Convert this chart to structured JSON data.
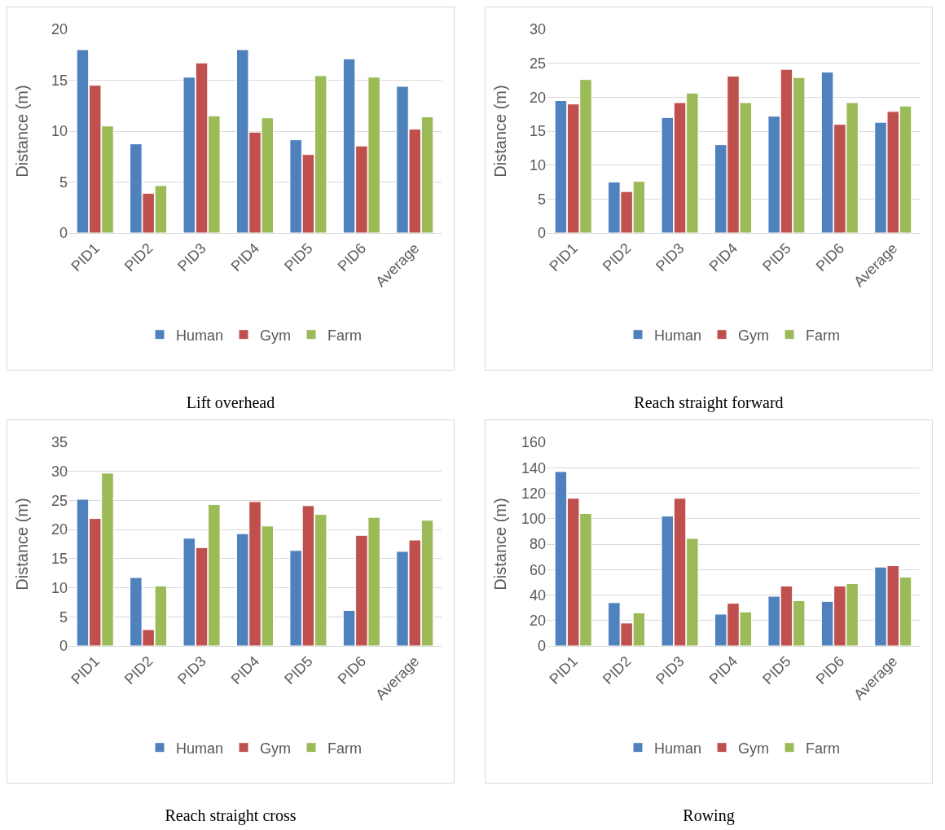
{
  "chart_data": [
    {
      "type": "bar",
      "title": "Lift overhead",
      "ylabel": "Distance (m)",
      "categories": [
        "PID1",
        "PID2",
        "PID3",
        "PID4",
        "PID5",
        "PID6",
        "Average"
      ],
      "ylim": [
        0,
        20
      ],
      "yticks": [
        0,
        5,
        10,
        15,
        20
      ],
      "grid": "y",
      "legend": "bottom",
      "series": [
        {
          "name": "Human",
          "color": "#4f81bd",
          "values": [
            18.0,
            8.75,
            15.3,
            18.0,
            9.15,
            17.1,
            14.4
          ]
        },
        {
          "name": "Gym",
          "color": "#c0504d",
          "values": [
            14.5,
            3.9,
            16.7,
            9.9,
            7.7,
            8.55,
            10.2
          ]
        },
        {
          "name": "Farm",
          "color": "#9bbb59",
          "values": [
            10.5,
            4.65,
            11.5,
            11.3,
            15.45,
            15.3,
            11.4
          ]
        }
      ]
    },
    {
      "type": "bar",
      "title": "Reach straight forward",
      "ylabel": "Distance (m)",
      "categories": [
        "PID1",
        "PID2",
        "PID3",
        "PID4",
        "PID5",
        "PID6",
        "Average"
      ],
      "ylim": [
        0,
        30
      ],
      "yticks": [
        0,
        5,
        10,
        15,
        20,
        25,
        30
      ],
      "grid": "y",
      "legend": "bottom",
      "series": [
        {
          "name": "Human",
          "color": "#4f81bd",
          "values": [
            19.5,
            7.5,
            17.0,
            13.0,
            17.2,
            23.7,
            16.3
          ]
        },
        {
          "name": "Gym",
          "color": "#c0504d",
          "values": [
            19.0,
            6.1,
            19.2,
            23.1,
            24.1,
            16.0,
            17.9
          ]
        },
        {
          "name": "Farm",
          "color": "#9bbb59",
          "values": [
            22.6,
            7.6,
            20.6,
            19.2,
            22.9,
            19.2,
            18.7
          ]
        }
      ]
    },
    {
      "type": "bar",
      "title": "Reach straight cross",
      "ylabel": "Distance (m)",
      "categories": [
        "PID1",
        "PID2",
        "PID3",
        "PID4",
        "PID5",
        "PID6",
        "Average"
      ],
      "ylim": [
        0,
        35
      ],
      "yticks": [
        0,
        5,
        10,
        15,
        20,
        25,
        30,
        35
      ],
      "grid": "y",
      "legend": "bottom",
      "series": [
        {
          "name": "Human",
          "color": "#4f81bd",
          "values": [
            25.2,
            11.75,
            18.5,
            19.3,
            16.4,
            6.1,
            16.25
          ]
        },
        {
          "name": "Gym",
          "color": "#c0504d",
          "values": [
            21.9,
            2.8,
            16.9,
            24.8,
            24.1,
            19.0,
            18.2
          ]
        },
        {
          "name": "Farm",
          "color": "#9bbb59",
          "values": [
            29.7,
            10.3,
            24.3,
            20.6,
            22.6,
            22.1,
            21.6
          ]
        }
      ]
    },
    {
      "type": "bar",
      "title": "Rowing",
      "ylabel": "Distance (m)",
      "categories": [
        "PID1",
        "PID2",
        "PID3",
        "PID4",
        "PID5",
        "PID6",
        "Average"
      ],
      "ylim": [
        0,
        160
      ],
      "yticks": [
        0,
        20,
        40,
        60,
        80,
        100,
        120,
        140,
        160
      ],
      "grid": "y",
      "legend": "bottom",
      "series": [
        {
          "name": "Human",
          "color": "#4f81bd",
          "values": [
            137,
            34,
            102,
            25,
            39,
            35,
            62
          ]
        },
        {
          "name": "Gym",
          "color": "#c0504d",
          "values": [
            116,
            18,
            116,
            33.5,
            47,
            47,
            63
          ]
        },
        {
          "name": "Farm",
          "color": "#9bbb59",
          "values": [
            104,
            26,
            84.5,
            26.7,
            35.5,
            49,
            54
          ]
        }
      ]
    }
  ]
}
